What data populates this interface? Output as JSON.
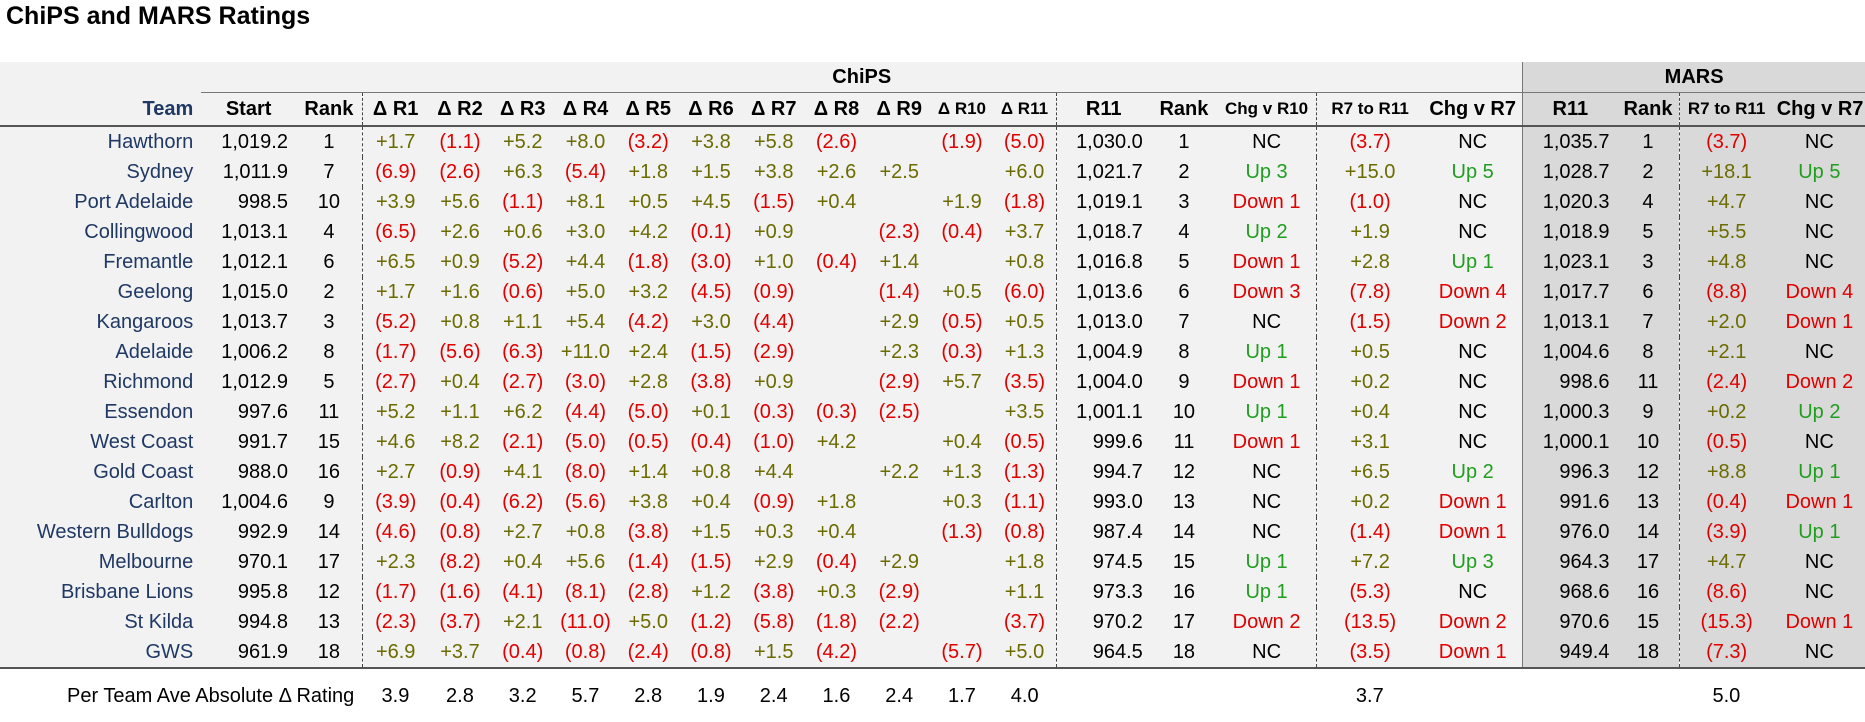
{
  "title": "ChiPS and MARS Ratings",
  "groups": {
    "chips": "ChiPS",
    "mars": "MARS"
  },
  "headers": [
    "Team",
    "Start",
    "Rank",
    "Δ R1",
    "Δ R2",
    "Δ R3",
    "Δ R4",
    "Δ R5",
    "Δ R6",
    "Δ R7",
    "Δ R8",
    "Δ R9",
    "Δ R10",
    "Δ R11",
    "R11",
    "Rank",
    "Chg v R10",
    "R7 to R11",
    "Chg v R7",
    "R11",
    "Rank",
    "R7 to R11",
    "Chg v R7"
  ],
  "rows": [
    [
      "Hawthorn",
      "1,019.2",
      "1",
      "+1.7",
      "(1.1)",
      "+5.2",
      "+8.0",
      "(3.2)",
      "+3.8",
      "+5.8",
      "(2.6)",
      "",
      "(1.9)",
      "(5.0)",
      "1,030.0",
      "1",
      "NC",
      "(3.7)",
      "NC",
      "1,035.7",
      "1",
      "(3.7)",
      "NC"
    ],
    [
      "Sydney",
      "1,011.9",
      "7",
      "(6.9)",
      "(2.6)",
      "+6.3",
      "(5.4)",
      "+1.8",
      "+1.5",
      "+3.8",
      "+2.6",
      "+2.5",
      "",
      "+6.0",
      "1,021.7",
      "2",
      "Up 3",
      "+15.0",
      "Up 5",
      "1,028.7",
      "2",
      "+18.1",
      "Up 5"
    ],
    [
      "Port Adelaide",
      "998.5",
      "10",
      "+3.9",
      "+5.6",
      "(1.1)",
      "+8.1",
      "+0.5",
      "+4.5",
      "(1.5)",
      "+0.4",
      "",
      "+1.9",
      "(1.8)",
      "1,019.1",
      "3",
      "Down 1",
      "(1.0)",
      "NC",
      "1,020.3",
      "4",
      "+4.7",
      "NC"
    ],
    [
      "Collingwood",
      "1,013.1",
      "4",
      "(6.5)",
      "+2.6",
      "+0.6",
      "+3.0",
      "+4.2",
      "(0.1)",
      "+0.9",
      "",
      "(2.3)",
      "(0.4)",
      "+3.7",
      "1,018.7",
      "4",
      "Up 2",
      "+1.9",
      "NC",
      "1,018.9",
      "5",
      "+5.5",
      "NC"
    ],
    [
      "Fremantle",
      "1,012.1",
      "6",
      "+6.5",
      "+0.9",
      "(5.2)",
      "+4.4",
      "(1.8)",
      "(3.0)",
      "+1.0",
      "(0.4)",
      "+1.4",
      "",
      "+0.8",
      "1,016.8",
      "5",
      "Down 1",
      "+2.8",
      "Up 1",
      "1,023.1",
      "3",
      "+4.8",
      "NC"
    ],
    [
      "Geelong",
      "1,015.0",
      "2",
      "+1.7",
      "+1.6",
      "(0.6)",
      "+5.0",
      "+3.2",
      "(4.5)",
      "(0.9)",
      "",
      "(1.4)",
      "+0.5",
      "(6.0)",
      "1,013.6",
      "6",
      "Down 3",
      "(7.8)",
      "Down 4",
      "1,017.7",
      "6",
      "(8.8)",
      "Down 4"
    ],
    [
      "Kangaroos",
      "1,013.7",
      "3",
      "(5.2)",
      "+0.8",
      "+1.1",
      "+5.4",
      "(4.2)",
      "+3.0",
      "(4.4)",
      "",
      "+2.9",
      "(0.5)",
      "+0.5",
      "1,013.0",
      "7",
      "NC",
      "(1.5)",
      "Down 2",
      "1,013.1",
      "7",
      "+2.0",
      "Down 1"
    ],
    [
      "Adelaide",
      "1,006.2",
      "8",
      "(1.7)",
      "(5.6)",
      "(6.3)",
      "+11.0",
      "+2.4",
      "(1.5)",
      "(2.9)",
      "",
      "+2.3",
      "(0.3)",
      "+1.3",
      "1,004.9",
      "8",
      "Up 1",
      "+0.5",
      "NC",
      "1,004.6",
      "8",
      "+2.1",
      "NC"
    ],
    [
      "Richmond",
      "1,012.9",
      "5",
      "(2.7)",
      "+0.4",
      "(2.7)",
      "(3.0)",
      "+2.8",
      "(3.8)",
      "+0.9",
      "",
      "(2.9)",
      "+5.7",
      "(3.5)",
      "1,004.0",
      "9",
      "Down 1",
      "+0.2",
      "NC",
      "998.6",
      "11",
      "(2.4)",
      "Down 2"
    ],
    [
      "Essendon",
      "997.6",
      "11",
      "+5.2",
      "+1.1",
      "+6.2",
      "(4.4)",
      "(5.0)",
      "+0.1",
      "(0.3)",
      "(0.3)",
      "(2.5)",
      "",
      "+3.5",
      "1,001.1",
      "10",
      "Up 1",
      "+0.4",
      "NC",
      "1,000.3",
      "9",
      "+0.2",
      "Up 2"
    ],
    [
      "West Coast",
      "991.7",
      "15",
      "+4.6",
      "+8.2",
      "(2.1)",
      "(5.0)",
      "(0.5)",
      "(0.4)",
      "(1.0)",
      "+4.2",
      "",
      "+0.4",
      "(0.5)",
      "999.6",
      "11",
      "Down 1",
      "+3.1",
      "NC",
      "1,000.1",
      "10",
      "(0.5)",
      "NC"
    ],
    [
      "Gold Coast",
      "988.0",
      "16",
      "+2.7",
      "(0.9)",
      "+4.1",
      "(8.0)",
      "+1.4",
      "+0.8",
      "+4.4",
      "",
      "+2.2",
      "+1.3",
      "(1.3)",
      "994.7",
      "12",
      "NC",
      "+6.5",
      "Up 2",
      "996.3",
      "12",
      "+8.8",
      "Up 1"
    ],
    [
      "Carlton",
      "1,004.6",
      "9",
      "(3.9)",
      "(0.4)",
      "(6.2)",
      "(5.6)",
      "+3.8",
      "+0.4",
      "(0.9)",
      "+1.8",
      "",
      "+0.3",
      "(1.1)",
      "993.0",
      "13",
      "NC",
      "+0.2",
      "Down 1",
      "991.6",
      "13",
      "(0.4)",
      "Down 1"
    ],
    [
      "Western Bulldogs",
      "992.9",
      "14",
      "(4.6)",
      "(0.8)",
      "+2.7",
      "+0.8",
      "(3.8)",
      "+1.5",
      "+0.3",
      "+0.4",
      "",
      "(1.3)",
      "(0.8)",
      "987.4",
      "14",
      "NC",
      "(1.4)",
      "Down 1",
      "976.0",
      "14",
      "(3.9)",
      "Up 1"
    ],
    [
      "Melbourne",
      "970.1",
      "17",
      "+2.3",
      "(8.2)",
      "+0.4",
      "+5.6",
      "(1.4)",
      "(1.5)",
      "+2.9",
      "(0.4)",
      "+2.9",
      "",
      "+1.8",
      "974.5",
      "15",
      "Up 1",
      "+7.2",
      "Up 3",
      "964.3",
      "17",
      "+4.7",
      "NC"
    ],
    [
      "Brisbane Lions",
      "995.8",
      "12",
      "(1.7)",
      "(1.6)",
      "(4.1)",
      "(8.1)",
      "(2.8)",
      "+1.2",
      "(3.8)",
      "+0.3",
      "(2.9)",
      "",
      "+1.1",
      "973.3",
      "16",
      "Up 1",
      "(5.3)",
      "NC",
      "968.6",
      "16",
      "(8.6)",
      "NC"
    ],
    [
      "St Kilda",
      "994.8",
      "13",
      "(2.3)",
      "(3.7)",
      "+2.1",
      "(11.0)",
      "+5.0",
      "(1.2)",
      "(5.8)",
      "(1.8)",
      "(2.2)",
      "",
      "(3.7)",
      "970.2",
      "17",
      "Down 2",
      "(13.5)",
      "Down 2",
      "970.6",
      "15",
      "(15.3)",
      "Down 1"
    ],
    [
      "GWS",
      "961.9",
      "18",
      "+6.9",
      "+3.7",
      "(0.4)",
      "(0.8)",
      "(2.4)",
      "(0.8)",
      "+1.5",
      "(4.2)",
      "",
      "(5.7)",
      "+5.0",
      "964.5",
      "18",
      "NC",
      "(3.5)",
      "Down 1",
      "949.4",
      "18",
      "(7.3)",
      "NC"
    ]
  ],
  "footer": {
    "label": "Per Team Ave Absolute Δ Rating",
    "values": [
      "3.9",
      "2.8",
      "3.2",
      "5.7",
      "2.8",
      "1.9",
      "2.4",
      "1.6",
      "2.4",
      "1.7",
      "4.0"
    ],
    "r7_to_r11": "3.7",
    "mars_r7_to_r11": "5.0"
  }
}
